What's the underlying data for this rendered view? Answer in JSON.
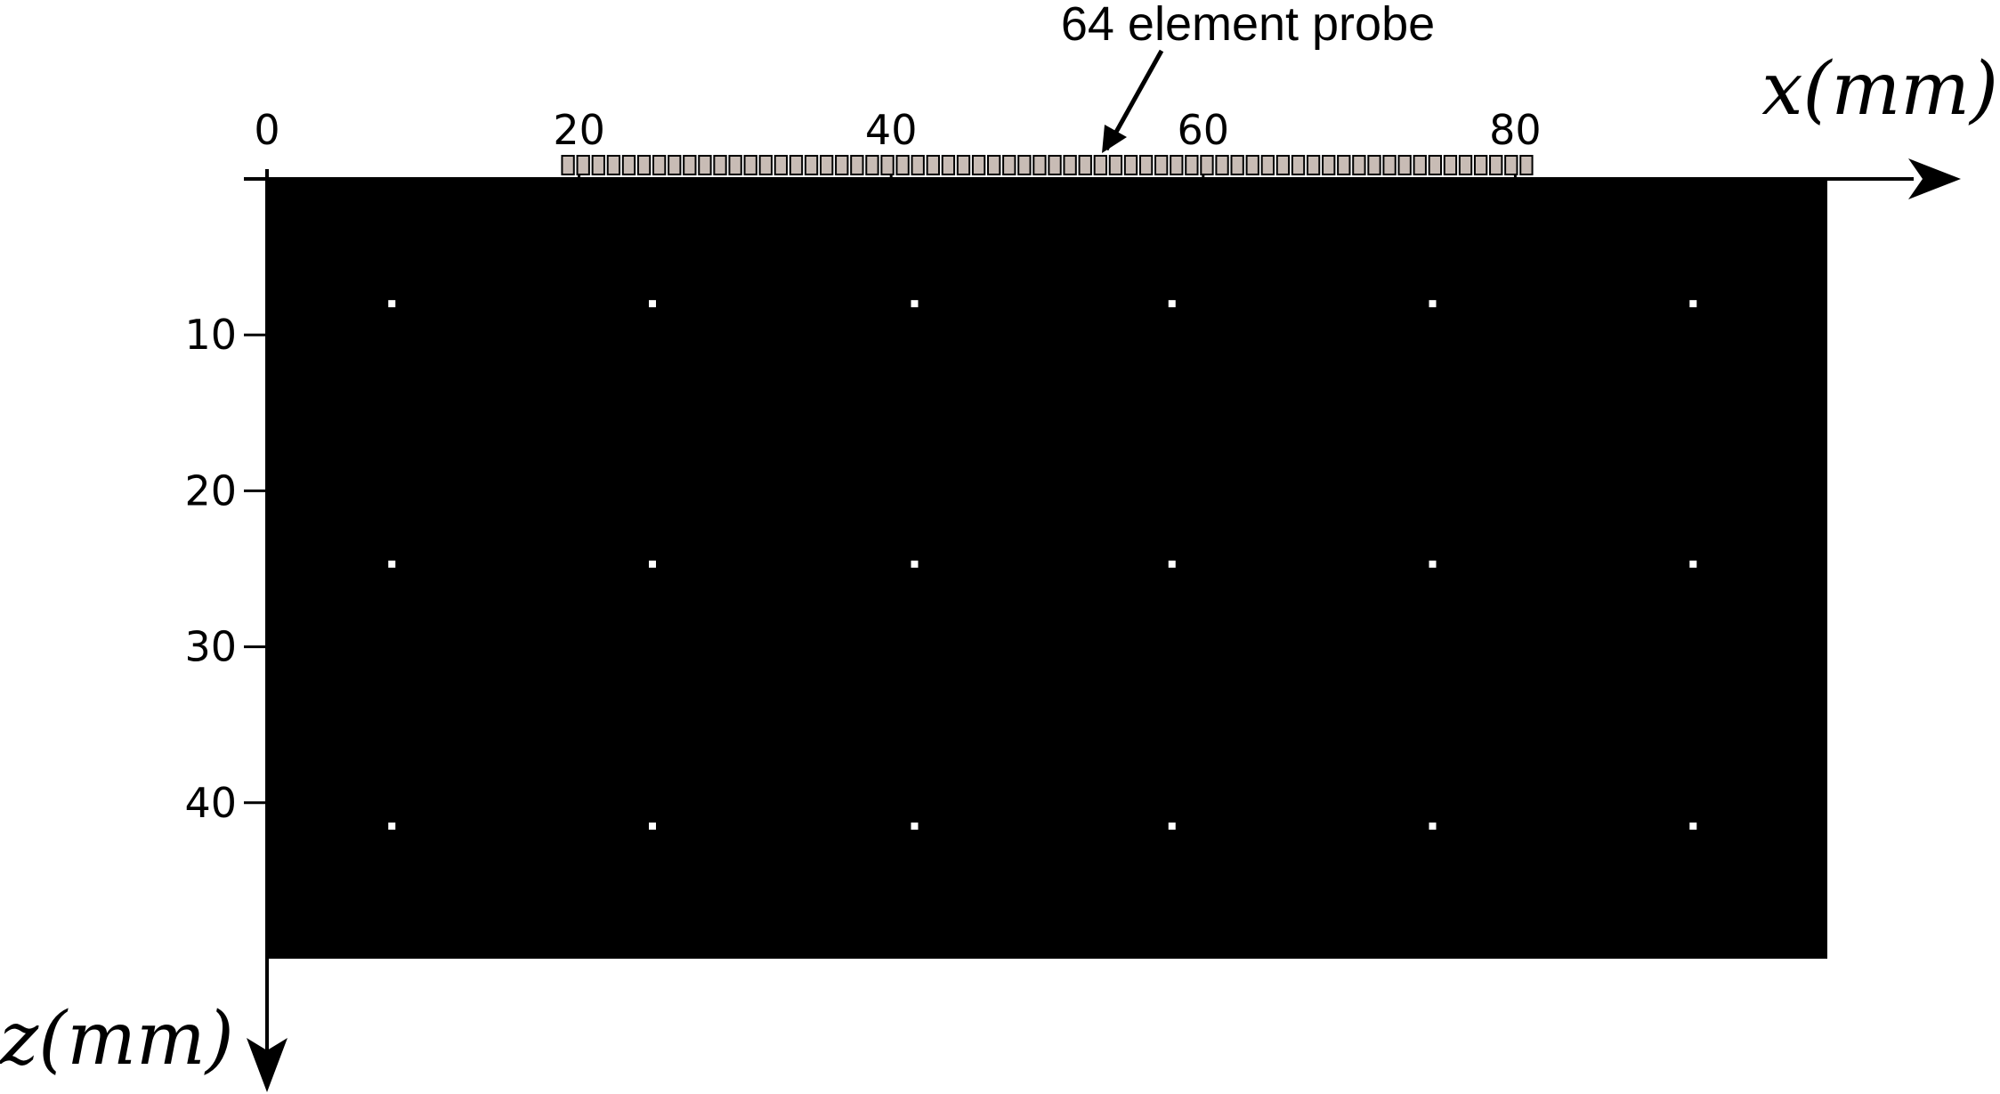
{
  "title": "",
  "annotation": {
    "probe_label": "64 element probe"
  },
  "axes": {
    "x": {
      "label": "x(mm)",
      "ticks": [
        "0",
        "20",
        "40",
        "60",
        "80"
      ],
      "range_mm": [
        0,
        100
      ]
    },
    "z": {
      "label": "z(mm)",
      "ticks": [
        "10",
        "20",
        "30",
        "40"
      ],
      "range_mm": [
        0,
        50
      ]
    }
  },
  "medium": {
    "color": "#000000"
  },
  "probe": {
    "element_count": 64,
    "x_start_mm": 18.8,
    "x_end_mm": 81.2,
    "element_fill": "#c8bcb5",
    "element_stroke": "#000000"
  },
  "scatterers": {
    "color": "#ffffff",
    "x_mm": [
      8,
      24.7,
      41.5,
      58,
      74.7,
      91.4
    ],
    "z_mm": [
      8,
      24.7,
      41.5
    ]
  }
}
